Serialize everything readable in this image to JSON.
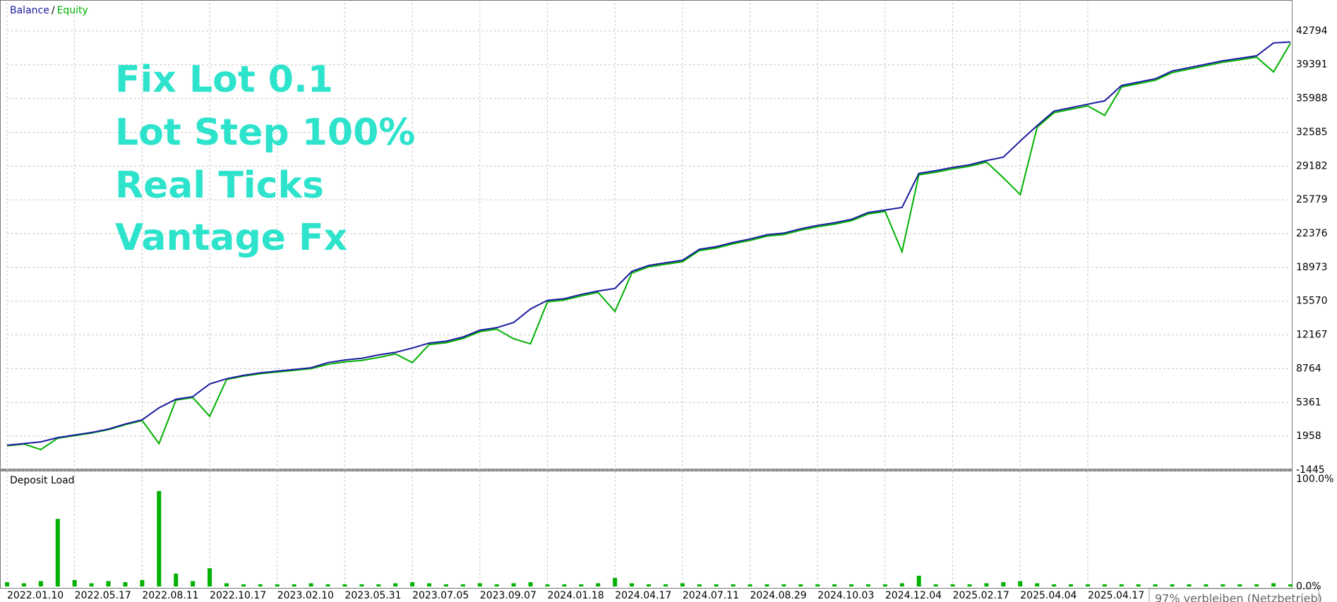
{
  "chart_data": [
    {
      "type": "line",
      "legend_separator": "/",
      "annotations": [
        "Fix Lot 0.1",
        "Lot Step 100%",
        "Real Ticks",
        "Vantage Fx"
      ],
      "categories": [
        "2022.01.10",
        null,
        null,
        null,
        "2022.05.17",
        null,
        null,
        null,
        "2022.08.11",
        null,
        null,
        null,
        "2022.10.17",
        null,
        null,
        null,
        "2023.02.10",
        null,
        null,
        null,
        "2023.05.31",
        null,
        null,
        null,
        "2023.07.05",
        null,
        null,
        null,
        "2023.09.07",
        null,
        null,
        null,
        "2024.01.18",
        null,
        null,
        null,
        "2024.04.17",
        null,
        null,
        null,
        "2024.07.11",
        null,
        null,
        null,
        "2024.08.29",
        null,
        null,
        null,
        "2024.10.03",
        null,
        null,
        null,
        "2024.12.04",
        null,
        null,
        null,
        "2025.02.17",
        null,
        null,
        null,
        "2025.04.04",
        null,
        null,
        null,
        "2025.04.17",
        null,
        null,
        null,
        null,
        null,
        null,
        null,
        null,
        null,
        null,
        null,
        null
      ],
      "series": [
        {
          "name": "Balance",
          "color": "#1a1aa0",
          "values": [
            1050,
            1220,
            1390,
            1820,
            2080,
            2340,
            2680,
            3190,
            3620,
            4830,
            5690,
            5940,
            7230,
            7750,
            8090,
            8350,
            8520,
            8690,
            8860,
            9380,
            9640,
            9810,
            10150,
            10410,
            10840,
            11350,
            11530,
            11960,
            12640,
            12900,
            13420,
            14790,
            15650,
            15820,
            16250,
            16590,
            16850,
            18570,
            19170,
            19430,
            19690,
            20800,
            21060,
            21490,
            21830,
            22260,
            22430,
            22860,
            23210,
            23470,
            23810,
            24500,
            24750,
            25010,
            28450,
            28710,
            29050,
            29310,
            29740,
            30080,
            31710,
            33260,
            34720,
            35060,
            35410,
            35750,
            37300,
            37640,
            37980,
            38760,
            39100,
            39440,
            39790,
            40040,
            40300,
            41590,
            41680
          ]
        },
        {
          "name": "Equity",
          "color": "#00b000",
          "values": [
            1000,
            1170,
            620,
            1760,
            2020,
            2280,
            2620,
            3120,
            3540,
            1220,
            5600,
            5860,
            3970,
            7680,
            8010,
            8260,
            8430,
            8600,
            8770,
            9200,
            9450,
            9600,
            9900,
            10250,
            9380,
            11200,
            11380,
            11800,
            12500,
            12750,
            11780,
            11270,
            15500,
            15680,
            16100,
            16450,
            14530,
            18400,
            19030,
            19290,
            19540,
            20660,
            20920,
            21350,
            21690,
            22120,
            22290,
            22720,
            23070,
            23330,
            23670,
            24360,
            24610,
            20550,
            28300,
            28560,
            28900,
            29160,
            29590,
            28000,
            26300,
            33100,
            34560,
            34900,
            35250,
            34290,
            37150,
            37490,
            37830,
            38600,
            38950,
            39290,
            39640,
            39890,
            40150,
            38670,
            41550
          ]
        }
      ],
      "ylim": [
        -1445,
        45630
      ],
      "yticks": [
        -1445,
        1958,
        5361,
        8764,
        12167,
        15570,
        18973,
        22376,
        25779,
        29182,
        32585,
        35988,
        39391,
        42794
      ],
      "grid": true
    },
    {
      "type": "bar",
      "title": "Deposit Load",
      "color": "#00b000",
      "values": [
        4,
        3,
        5,
        63,
        6,
        3,
        5,
        4,
        6,
        89,
        12,
        5,
        17,
        3,
        2,
        2,
        2,
        2,
        3,
        2,
        2,
        2,
        2,
        3,
        4,
        3,
        2,
        2,
        3,
        2,
        3,
        4,
        2,
        2,
        2,
        3,
        8,
        3,
        2,
        2,
        3,
        2,
        2,
        2,
        2,
        2,
        2,
        2,
        2,
        2,
        2,
        2,
        2,
        3,
        10,
        2,
        2,
        2,
        3,
        4,
        5,
        3,
        2,
        2,
        2,
        2,
        2,
        2,
        2,
        2,
        2,
        2,
        2,
        2,
        2,
        3,
        2
      ],
      "ylim": [
        0,
        100
      ],
      "yticks": [
        {
          "value": 100,
          "label": "100.0%"
        },
        {
          "value": 0,
          "label": "0.0%"
        }
      ]
    }
  ],
  "status": "97% verbleiben (Netzbetrieb)"
}
